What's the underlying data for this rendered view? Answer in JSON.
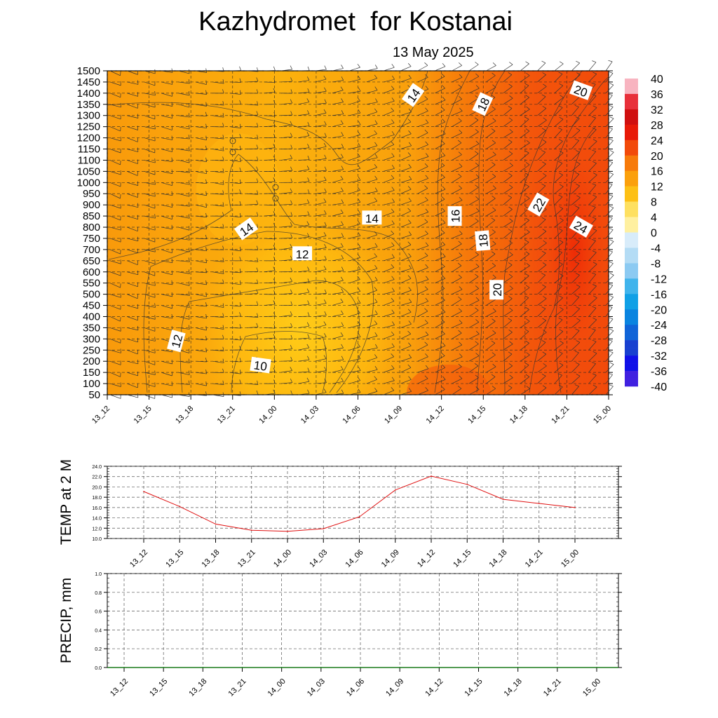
{
  "header": {
    "title": "Kazhydromet  for Kostanai",
    "date": "13 May 2025"
  },
  "colorbar": {
    "labels": [
      "40",
      "36",
      "32",
      "28",
      "24",
      "20",
      "16",
      "12",
      "8",
      "4",
      "0",
      "-4",
      "-8",
      "-12",
      "-16",
      "-20",
      "-24",
      "-28",
      "-32",
      "-36",
      "-40"
    ]
  },
  "chart_data": [
    {
      "type": "heatmap",
      "name": "temperature cross-section",
      "x_ticks": [
        "13_12",
        "13_15",
        "13_18",
        "13_21",
        "14_00",
        "14_03",
        "14_06",
        "14_09",
        "14_12",
        "14_15",
        "14_18",
        "14_21",
        "15_00"
      ],
      "y_ticks": [
        "1500",
        "1450",
        "1400",
        "1350",
        "1300",
        "1250",
        "1200",
        "1150",
        "1100",
        "1050",
        "1000",
        "950",
        "900",
        "850",
        "800",
        "750",
        "700",
        "650",
        "600",
        "550",
        "500",
        "450",
        "400",
        "350",
        "300",
        "250",
        "200",
        "150",
        "100",
        "50"
      ],
      "ylim": [
        50,
        1500
      ],
      "grid": true,
      "contour_labels": [
        {
          "text": "14",
          "x": "13_22",
          "y": 790,
          "angle": -35
        },
        {
          "text": "12",
          "x": "14_02",
          "y": 680,
          "angle": 0
        },
        {
          "text": "14",
          "x": "14_07",
          "y": 840,
          "angle": 0
        },
        {
          "text": "12",
          "x": "13_17",
          "y": 290,
          "angle": -75
        },
        {
          "text": "10",
          "x": "13_23",
          "y": 180,
          "angle": 8
        },
        {
          "text": "14",
          "x": "14_10",
          "y": 1390,
          "angle": -55
        },
        {
          "text": "16",
          "x": "14_13",
          "y": 850,
          "angle": -90
        },
        {
          "text": "18",
          "x": "14_15",
          "y": 1350,
          "angle": -65
        },
        {
          "text": "18",
          "x": "14_15",
          "y": 740,
          "angle": -95
        },
        {
          "text": "20",
          "x": "14_16",
          "y": 520,
          "angle": -90
        },
        {
          "text": "22",
          "x": "14_19",
          "y": 900,
          "angle": -60
        },
        {
          "text": "24",
          "x": "14_22",
          "y": 800,
          "angle": 30
        },
        {
          "text": "20",
          "x": "14_22",
          "y": 1410,
          "angle": 20
        }
      ]
    },
    {
      "type": "line",
      "ylabel": "TEMP at 2 M",
      "x": [
        "13_12",
        "13_15",
        "13_18",
        "13_21",
        "14_00",
        "14_03",
        "14_06",
        "14_09",
        "14_12",
        "14_15",
        "14_18",
        "14_21",
        "15_00"
      ],
      "series": [
        {
          "values": [
            19.1,
            16.2,
            12.8,
            11.6,
            11.4,
            11.9,
            14.2,
            19.4,
            22.1,
            20.5,
            17.6,
            16.8,
            16.0
          ],
          "color": "#e01010"
        }
      ],
      "y_ticks": [
        "24.0",
        "22.0",
        "20.0",
        "18.0",
        "16.0",
        "14.0",
        "12.0",
        "10.0"
      ],
      "ylim": [
        10,
        24
      ],
      "grid": true
    },
    {
      "type": "line",
      "ylabel": "PRECIP, mm",
      "x": [
        "13_12",
        "13_15",
        "13_18",
        "13_21",
        "14_00",
        "14_03",
        "14_06",
        "14_09",
        "14_12",
        "14_15",
        "14_18",
        "14_21",
        "15_00"
      ],
      "series": [
        {
          "values": [
            0,
            0,
            0,
            0,
            0,
            0,
            0,
            0,
            0,
            0,
            0,
            0,
            0
          ],
          "color": "#1a7a1a"
        }
      ],
      "y_ticks": [
        "1.0",
        "0.8",
        "0.6",
        "0.4",
        "0.2",
        "0.0"
      ],
      "ylim": [
        0,
        1
      ],
      "grid": true
    }
  ]
}
